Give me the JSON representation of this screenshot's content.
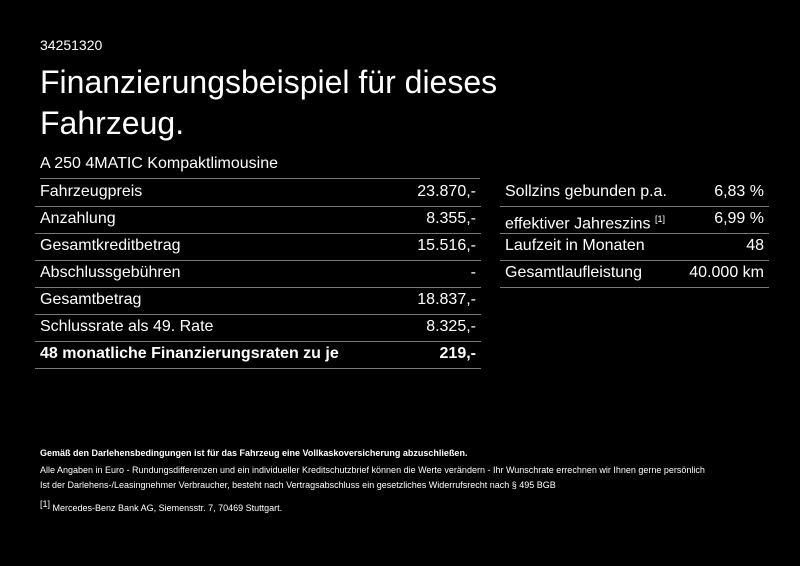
{
  "header": {
    "id": "34251320",
    "title_lines": [
      "Finanzierungsbeispiel für dieses",
      "Fahrzeug."
    ],
    "model": "A 250 4MATIC Kompaktlimousine"
  },
  "left_table": {
    "rows": [
      [
        "Fahrzeugpreis",
        "23.870,-"
      ],
      [
        "Anzahlung",
        "8.355,-"
      ],
      [
        "Gesamtkreditbetrag",
        "15.516,-"
      ],
      [
        "Abschlussgebühren",
        "-"
      ],
      [
        "Gesamtbetrag",
        "18.837,-"
      ],
      [
        "Schlussrate als 49. Rate",
        "8.325,-"
      ],
      [
        "48 monatliche Finanzierungsraten zu je",
        "219,-"
      ]
    ]
  },
  "right_table": {
    "rows": [
      {
        "label": "Sollzins gebunden p.a.",
        "value": "6,83 %"
      },
      {
        "label": "effektiver Jahreszins",
        "note": "[1]",
        "value": "6,99 %"
      },
      {
        "label": "Laufzeit in Monaten",
        "value": "48"
      },
      {
        "label": "Gesamtlaufleistung",
        "value": "40.000 km"
      }
    ]
  },
  "footer": {
    "bold_note": "Gemäß den Darlehensbedingungen ist für das Fahrzeug eine Vollkaskoversicherung abzuschließen.",
    "lines": [
      "Alle Angaben in Euro - Rundungsdifferenzen und ein individueller Kreditschutzbrief können die Werte verändern - Ihr Wunschrate errechnen wir Ihnen gerne persönlich",
      "Ist der Darlehens-/Leasingnehmer Verbraucher, besteht nach Vertragsabschluss ein gesetzliches Widerrufsrecht nach § 495 BGB"
    ],
    "footnote": {
      "mark": "[1]",
      "text": "Mercedes-Benz Bank AG, Siemensstr. 7, 70469 Stuttgart."
    }
  }
}
